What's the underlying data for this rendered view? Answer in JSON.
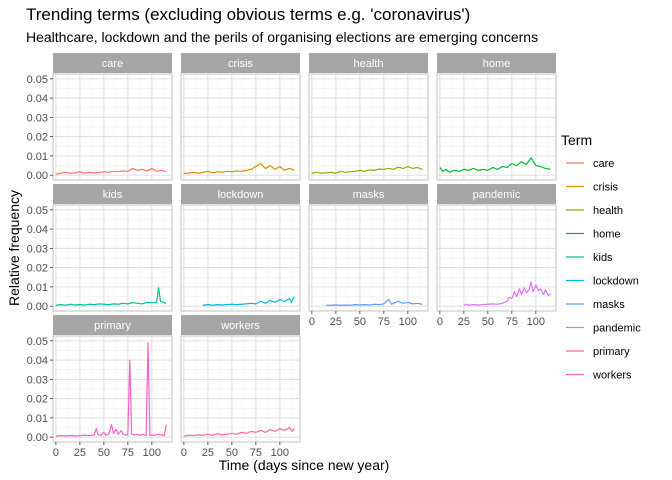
{
  "chart_data": {
    "type": "line",
    "title": "Trending terms (excluding obvious terms e.g. 'coronavirus')",
    "subtitle": "Healthcare, lockdown and the perils of organising elections are emerging concerns",
    "xlabel": "Time (days since new year)",
    "ylabel": "Relative frequency",
    "xlim": [
      -3,
      121
    ],
    "ylim": [
      -0.0025,
      0.0525
    ],
    "xticks": [
      0,
      25,
      50,
      75,
      100
    ],
    "xtick_labels": [
      "0",
      "25",
      "50",
      "75",
      "100"
    ],
    "yticks": [
      0,
      0.01,
      0.02,
      0.03,
      0.04,
      0.05
    ],
    "ytick_labels": [
      "0.00",
      "0.01",
      "0.02",
      "0.03",
      "0.04",
      "0.05"
    ],
    "grid": true,
    "legend": {
      "title": "Term",
      "position": "right"
    },
    "series": [
      {
        "name": "care",
        "color": "#F8766D",
        "points": [
          [
            0,
            0.0005
          ],
          [
            5,
            0.001
          ],
          [
            10,
            0.0015
          ],
          [
            15,
            0.001
          ],
          [
            20,
            0.0012
          ],
          [
            25,
            0.0018
          ],
          [
            30,
            0.001
          ],
          [
            35,
            0.0015
          ],
          [
            40,
            0.0012
          ],
          [
            45,
            0.0014
          ],
          [
            50,
            0.0018
          ],
          [
            55,
            0.0015
          ],
          [
            60,
            0.002
          ],
          [
            65,
            0.0018
          ],
          [
            70,
            0.0022
          ],
          [
            75,
            0.002
          ],
          [
            80,
            0.0035
          ],
          [
            85,
            0.0025
          ],
          [
            90,
            0.003
          ],
          [
            95,
            0.0022
          ],
          [
            100,
            0.0035
          ],
          [
            105,
            0.002
          ],
          [
            110,
            0.0025
          ],
          [
            115,
            0.0018
          ]
        ]
      },
      {
        "name": "crisis",
        "color": "#D39200",
        "points": [
          [
            0,
            0.001
          ],
          [
            5,
            0.001
          ],
          [
            10,
            0.0015
          ],
          [
            15,
            0.001
          ],
          [
            20,
            0.0015
          ],
          [
            25,
            0.002
          ],
          [
            30,
            0.0012
          ],
          [
            35,
            0.0018
          ],
          [
            40,
            0.0015
          ],
          [
            45,
            0.002
          ],
          [
            50,
            0.0018
          ],
          [
            55,
            0.0022
          ],
          [
            60,
            0.002
          ],
          [
            65,
            0.0025
          ],
          [
            70,
            0.003
          ],
          [
            75,
            0.0045
          ],
          [
            80,
            0.006
          ],
          [
            85,
            0.0035
          ],
          [
            90,
            0.005
          ],
          [
            95,
            0.003
          ],
          [
            100,
            0.0045
          ],
          [
            105,
            0.0025
          ],
          [
            110,
            0.0035
          ],
          [
            115,
            0.0025
          ]
        ]
      },
      {
        "name": "health",
        "color": "#93AA00",
        "points": [
          [
            0,
            0.001
          ],
          [
            5,
            0.0015
          ],
          [
            10,
            0.001
          ],
          [
            15,
            0.0012
          ],
          [
            20,
            0.0015
          ],
          [
            25,
            0.001
          ],
          [
            30,
            0.002
          ],
          [
            35,
            0.0015
          ],
          [
            40,
            0.0018
          ],
          [
            45,
            0.002
          ],
          [
            50,
            0.0025
          ],
          [
            55,
            0.002
          ],
          [
            60,
            0.0028
          ],
          [
            65,
            0.0025
          ],
          [
            70,
            0.0032
          ],
          [
            75,
            0.003
          ],
          [
            80,
            0.0035
          ],
          [
            85,
            0.003
          ],
          [
            90,
            0.0042
          ],
          [
            95,
            0.0035
          ],
          [
            100,
            0.0045
          ],
          [
            105,
            0.0035
          ],
          [
            110,
            0.004
          ],
          [
            115,
            0.003
          ]
        ]
      },
      {
        "name": "home",
        "color": "#00BA38",
        "points": [
          [
            0,
            0.004
          ],
          [
            3,
            0.002
          ],
          [
            6,
            0.003
          ],
          [
            10,
            0.0015
          ],
          [
            15,
            0.0025
          ],
          [
            20,
            0.002
          ],
          [
            25,
            0.003
          ],
          [
            30,
            0.0025
          ],
          [
            35,
            0.0035
          ],
          [
            40,
            0.0025
          ],
          [
            45,
            0.003
          ],
          [
            50,
            0.0025
          ],
          [
            55,
            0.004
          ],
          [
            60,
            0.003
          ],
          [
            65,
            0.0045
          ],
          [
            70,
            0.004
          ],
          [
            75,
            0.006
          ],
          [
            80,
            0.005
          ],
          [
            85,
            0.007
          ],
          [
            90,
            0.0055
          ],
          [
            95,
            0.009
          ],
          [
            100,
            0.005
          ],
          [
            105,
            0.0045
          ],
          [
            110,
            0.0035
          ],
          [
            115,
            0.003
          ]
        ]
      },
      {
        "name": "kids",
        "color": "#00C19F",
        "points": [
          [
            0,
            0.0005
          ],
          [
            5,
            0.0008
          ],
          [
            10,
            0.0005
          ],
          [
            15,
            0.001
          ],
          [
            20,
            0.0006
          ],
          [
            25,
            0.0008
          ],
          [
            30,
            0.0006
          ],
          [
            35,
            0.001
          ],
          [
            40,
            0.0008
          ],
          [
            45,
            0.0012
          ],
          [
            50,
            0.001
          ],
          [
            55,
            0.0008
          ],
          [
            60,
            0.0012
          ],
          [
            65,
            0.001
          ],
          [
            70,
            0.0015
          ],
          [
            75,
            0.0012
          ],
          [
            80,
            0.0018
          ],
          [
            85,
            0.0015
          ],
          [
            90,
            0.0012
          ],
          [
            95,
            0.002
          ],
          [
            100,
            0.0018
          ],
          [
            105,
            0.002
          ],
          [
            107,
            0.0095
          ],
          [
            109,
            0.0025
          ],
          [
            112,
            0.002
          ],
          [
            115,
            0.0015
          ]
        ]
      },
      {
        "name": "lockdown",
        "color": "#00B9E3",
        "points": [
          [
            20,
            0.0005
          ],
          [
            25,
            0.0008
          ],
          [
            30,
            0.0005
          ],
          [
            35,
            0.0008
          ],
          [
            40,
            0.0006
          ],
          [
            45,
            0.0008
          ],
          [
            50,
            0.001
          ],
          [
            55,
            0.0008
          ],
          [
            60,
            0.001
          ],
          [
            65,
            0.0012
          ],
          [
            70,
            0.0015
          ],
          [
            75,
            0.0012
          ],
          [
            80,
            0.0025
          ],
          [
            85,
            0.0015
          ],
          [
            90,
            0.003
          ],
          [
            95,
            0.002
          ],
          [
            100,
            0.0035
          ],
          [
            105,
            0.0025
          ],
          [
            110,
            0.004
          ],
          [
            112,
            0.002
          ],
          [
            115,
            0.005
          ]
        ]
      },
      {
        "name": "masks",
        "color": "#619CFF",
        "points": [
          [
            15,
            0.0005
          ],
          [
            20,
            0.0005
          ],
          [
            25,
            0.0006
          ],
          [
            30,
            0.0005
          ],
          [
            35,
            0.0006
          ],
          [
            40,
            0.0005
          ],
          [
            45,
            0.0008
          ],
          [
            50,
            0.0006
          ],
          [
            55,
            0.0008
          ],
          [
            60,
            0.0006
          ],
          [
            65,
            0.001
          ],
          [
            70,
            0.0008
          ],
          [
            75,
            0.0012
          ],
          [
            80,
            0.0035
          ],
          [
            83,
            0.001
          ],
          [
            85,
            0.0015
          ],
          [
            90,
            0.0025
          ],
          [
            95,
            0.0015
          ],
          [
            100,
            0.002
          ],
          [
            105,
            0.0012
          ],
          [
            110,
            0.0015
          ],
          [
            115,
            0.001
          ]
        ]
      },
      {
        "name": "pandemic",
        "color": "#DB72FB",
        "points": [
          [
            25,
            0.0005
          ],
          [
            28,
            0.001
          ],
          [
            30,
            0.0005
          ],
          [
            35,
            0.0008
          ],
          [
            40,
            0.0006
          ],
          [
            45,
            0.0008
          ],
          [
            50,
            0.001
          ],
          [
            55,
            0.0012
          ],
          [
            60,
            0.001
          ],
          [
            65,
            0.0015
          ],
          [
            70,
            0.0025
          ],
          [
            72,
            0.0045
          ],
          [
            75,
            0.004
          ],
          [
            78,
            0.0075
          ],
          [
            80,
            0.005
          ],
          [
            83,
            0.009
          ],
          [
            85,
            0.006
          ],
          [
            88,
            0.0095
          ],
          [
            90,
            0.007
          ],
          [
            93,
            0.0085
          ],
          [
            95,
            0.0125
          ],
          [
            97,
            0.0075
          ],
          [
            100,
            0.011
          ],
          [
            103,
            0.008
          ],
          [
            105,
            0.009
          ],
          [
            108,
            0.006
          ],
          [
            110,
            0.0085
          ],
          [
            113,
            0.0055
          ],
          [
            115,
            0.0065
          ]
        ]
      },
      {
        "name": "primary",
        "color": "#FF61C3",
        "points": [
          [
            0,
            0.0005
          ],
          [
            5,
            0.0008
          ],
          [
            10,
            0.0006
          ],
          [
            15,
            0.0008
          ],
          [
            20,
            0.0006
          ],
          [
            25,
            0.0008
          ],
          [
            30,
            0.001
          ],
          [
            35,
            0.0008
          ],
          [
            40,
            0.0012
          ],
          [
            42,
            0.0045
          ],
          [
            44,
            0.0012
          ],
          [
            47,
            0.001
          ],
          [
            50,
            0.0025
          ],
          [
            52,
            0.001
          ],
          [
            55,
            0.0015
          ],
          [
            58,
            0.0065
          ],
          [
            60,
            0.002
          ],
          [
            63,
            0.004
          ],
          [
            65,
            0.0015
          ],
          [
            68,
            0.0035
          ],
          [
            70,
            0.0015
          ],
          [
            73,
            0.001
          ],
          [
            75,
            0.0015
          ],
          [
            77,
            0.04
          ],
          [
            79,
            0.0015
          ],
          [
            82,
            0.0012
          ],
          [
            85,
            0.0015
          ],
          [
            88,
            0.001
          ],
          [
            91,
            0.0015
          ],
          [
            94,
            0.0008
          ],
          [
            96,
            0.049
          ],
          [
            98,
            0.0008
          ],
          [
            100,
            0.0012
          ],
          [
            103,
            0.001
          ],
          [
            106,
            0.0015
          ],
          [
            110,
            0.0012
          ],
          [
            113,
            0.0008
          ],
          [
            115,
            0.0065
          ]
        ]
      },
      {
        "name": "workers",
        "color": "#FF67A4",
        "points": [
          [
            0,
            0.0005
          ],
          [
            5,
            0.001
          ],
          [
            10,
            0.0008
          ],
          [
            15,
            0.0012
          ],
          [
            20,
            0.001
          ],
          [
            25,
            0.0015
          ],
          [
            30,
            0.001
          ],
          [
            35,
            0.0018
          ],
          [
            40,
            0.0012
          ],
          [
            45,
            0.0015
          ],
          [
            50,
            0.002
          ],
          [
            55,
            0.0015
          ],
          [
            60,
            0.0025
          ],
          [
            65,
            0.002
          ],
          [
            70,
            0.003
          ],
          [
            75,
            0.0025
          ],
          [
            80,
            0.0035
          ],
          [
            85,
            0.0025
          ],
          [
            90,
            0.004
          ],
          [
            95,
            0.003
          ],
          [
            100,
            0.0045
          ],
          [
            105,
            0.0035
          ],
          [
            110,
            0.005
          ],
          [
            113,
            0.003
          ],
          [
            115,
            0.0045
          ]
        ]
      }
    ]
  }
}
